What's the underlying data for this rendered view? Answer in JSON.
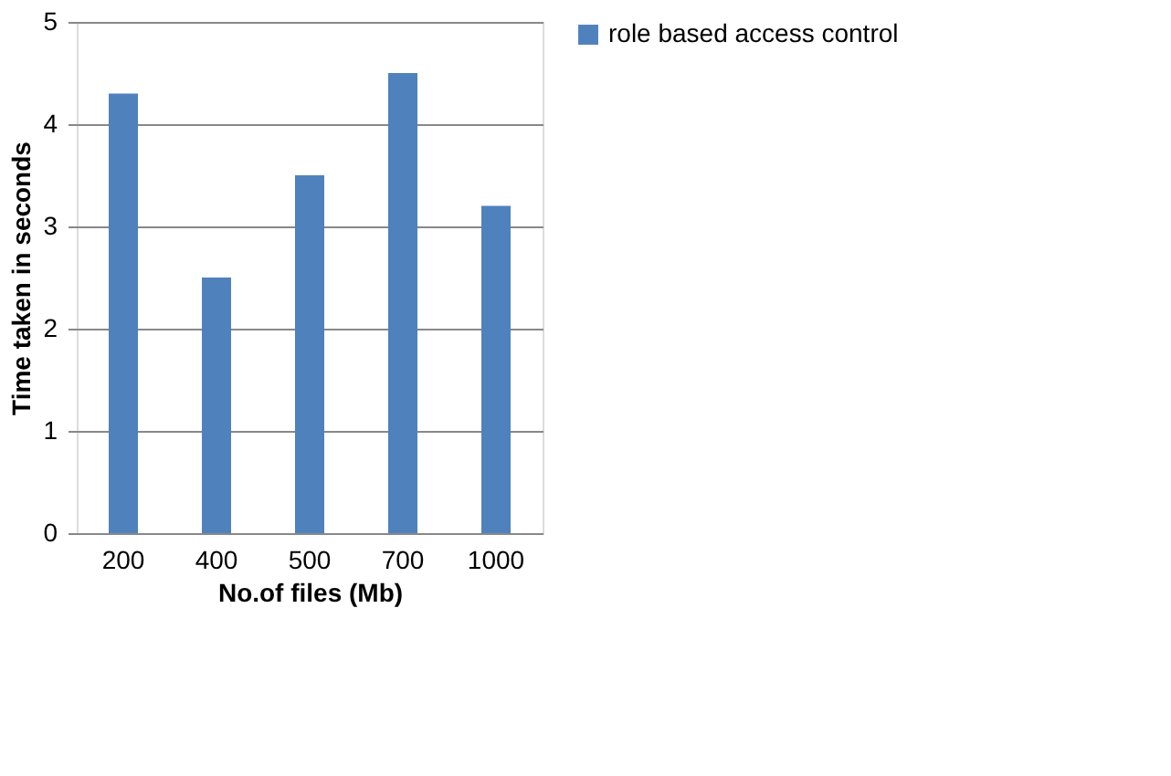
{
  "chart_data": {
    "type": "bar",
    "xlabel": "No.of files (Mb)",
    "ylabel": "Time taken in seconds",
    "categories": [
      "200",
      "400",
      "500",
      "700",
      "1000"
    ],
    "series": [
      {
        "name": "role based access control",
        "color": "#4f81bd",
        "values": [
          4.3,
          2.5,
          3.5,
          4.5,
          3.2
        ]
      }
    ],
    "ylim": [
      0,
      5
    ],
    "yticks": [
      0,
      1,
      2,
      3,
      4,
      5
    ],
    "grid": "y",
    "legend": "right"
  }
}
